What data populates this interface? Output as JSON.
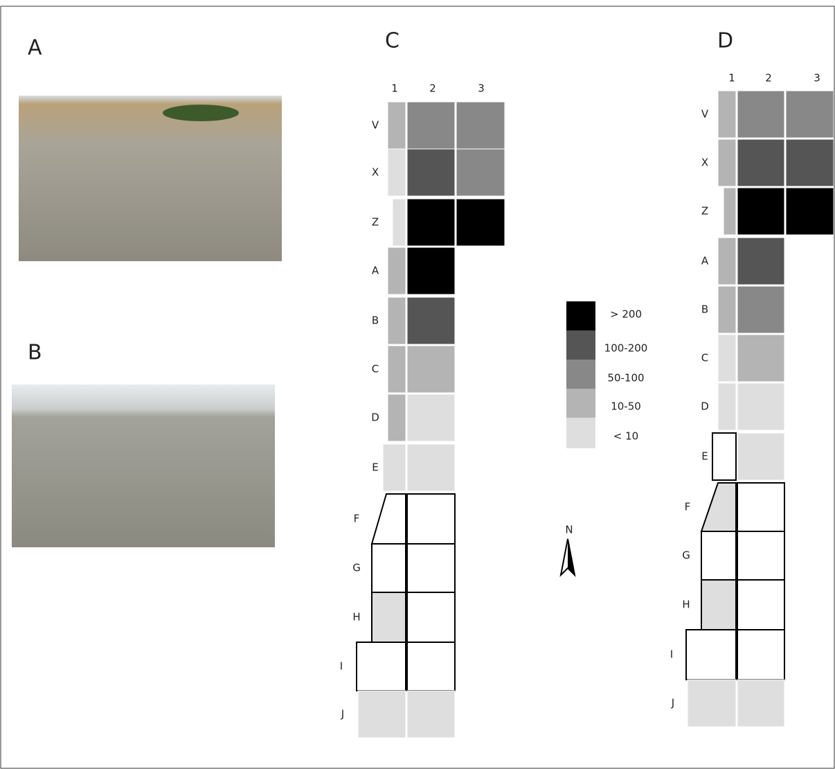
{
  "photo_a": {
    "label": "A"
  },
  "photo_b": {
    "label": "B"
  },
  "map_c": {
    "label": "C",
    "columns": [
      "1",
      "2",
      "3"
    ],
    "rows": [
      {
        "label": "V",
        "cells": [
          "10-50",
          "50-100",
          "50-100"
        ]
      },
      {
        "label": "X",
        "cells": [
          "< 10",
          "100-200",
          "50-100"
        ]
      },
      {
        "label": "Z",
        "cells": [
          "< 10",
          "> 200",
          "> 200"
        ]
      },
      {
        "label": "A",
        "cells": [
          "10-50",
          "> 200"
        ]
      },
      {
        "label": "B",
        "cells": [
          "10-50",
          "100-200"
        ]
      },
      {
        "label": "C",
        "cells": [
          "10-50",
          "10-50"
        ]
      },
      {
        "label": "D",
        "cells": [
          "10-50",
          "< 10"
        ]
      },
      {
        "label": "E",
        "cells": [
          "< 10",
          "< 10"
        ]
      },
      {
        "label": "F",
        "cells": [
          null,
          null
        ]
      },
      {
        "label": "G",
        "cells": [
          null,
          null
        ]
      },
      {
        "label": "H",
        "cells": [
          "< 10",
          null
        ]
      },
      {
        "label": "I",
        "cells": [
          null,
          null
        ]
      },
      {
        "label": "J",
        "cells": [
          "< 10",
          "< 10"
        ]
      }
    ]
  },
  "map_d": {
    "label": "D",
    "columns": [
      "1",
      "2",
      "3"
    ],
    "rows": [
      {
        "label": "V",
        "cells": [
          "10-50",
          "50-100",
          "50-100"
        ]
      },
      {
        "label": "X",
        "cells": [
          "10-50",
          "100-200",
          "100-200"
        ]
      },
      {
        "label": "Z",
        "cells": [
          "10-50",
          "> 200",
          "> 200"
        ]
      },
      {
        "label": "A",
        "cells": [
          "10-50",
          "100-200"
        ]
      },
      {
        "label": "B",
        "cells": [
          "10-50",
          "50-100"
        ]
      },
      {
        "label": "C",
        "cells": [
          "< 10",
          "10-50"
        ]
      },
      {
        "label": "D",
        "cells": [
          "< 10",
          "< 10"
        ]
      },
      {
        "label": "E",
        "cells": [
          null,
          "< 10"
        ]
      },
      {
        "label": "F",
        "cells": [
          "< 10",
          null
        ]
      },
      {
        "label": "G",
        "cells": [
          null,
          null
        ]
      },
      {
        "label": "H",
        "cells": [
          "< 10",
          null
        ]
      },
      {
        "label": "I",
        "cells": [
          null,
          null
        ]
      },
      {
        "label": "J",
        "cells": [
          "< 10",
          "< 10"
        ]
      }
    ]
  },
  "legend": [
    {
      "label": "> 200",
      "color": "#000000"
    },
    {
      "label": "100-200",
      "color": "#555555"
    },
    {
      "label": "50-100",
      "color": "#888888"
    },
    {
      "label": "10-50",
      "color": "#b4b4b4"
    },
    {
      "label": "< 10",
      "color": "#dedede"
    }
  ],
  "north_label": "N"
}
